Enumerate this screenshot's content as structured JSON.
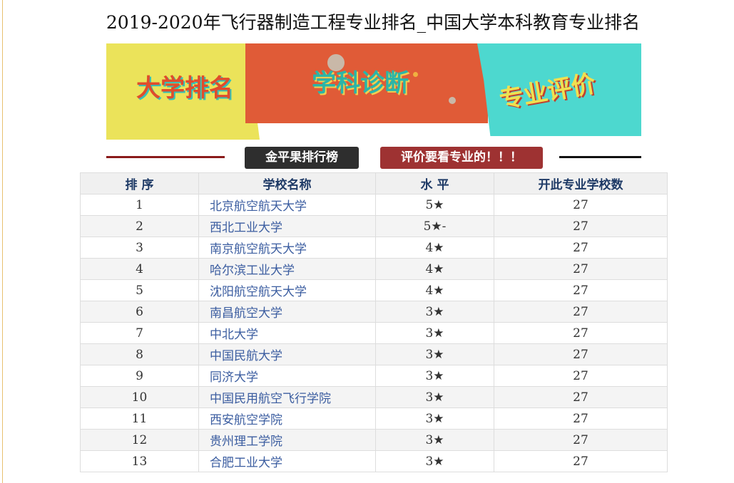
{
  "title": "2019-2020年飞行器制造工程专业排名_中国大学本科教育专业排名",
  "banner": {
    "panel1": "大学排名",
    "panel2": "学科诊断",
    "panel3": "专业评价",
    "tag1": "金平果排行榜",
    "tag2": "评价要看专业的！！！"
  },
  "table": {
    "headers": [
      "排 序",
      "学校名称",
      "水 平",
      "开此专业学校数"
    ],
    "rows": [
      [
        "1",
        "北京航空航天大学",
        "5★",
        "27"
      ],
      [
        "2",
        "西北工业大学",
        "5★-",
        "27"
      ],
      [
        "3",
        "南京航空航天大学",
        "4★",
        "27"
      ],
      [
        "4",
        "哈尔滨工业大学",
        "4★",
        "27"
      ],
      [
        "5",
        "沈阳航空航天大学",
        "4★",
        "27"
      ],
      [
        "6",
        "南昌航空大学",
        "3★",
        "27"
      ],
      [
        "7",
        "中北大学",
        "3★",
        "27"
      ],
      [
        "8",
        "中国民航大学",
        "3★",
        "27"
      ],
      [
        "9",
        "同济大学",
        "3★",
        "27"
      ],
      [
        "10",
        "中国民用航空飞行学院",
        "3★",
        "27"
      ],
      [
        "11",
        "西安航空学院",
        "3★",
        "27"
      ],
      [
        "12",
        "贵州理工学院",
        "3★",
        "27"
      ],
      [
        "13",
        "合肥工业大学",
        "3★",
        "27"
      ]
    ]
  }
}
